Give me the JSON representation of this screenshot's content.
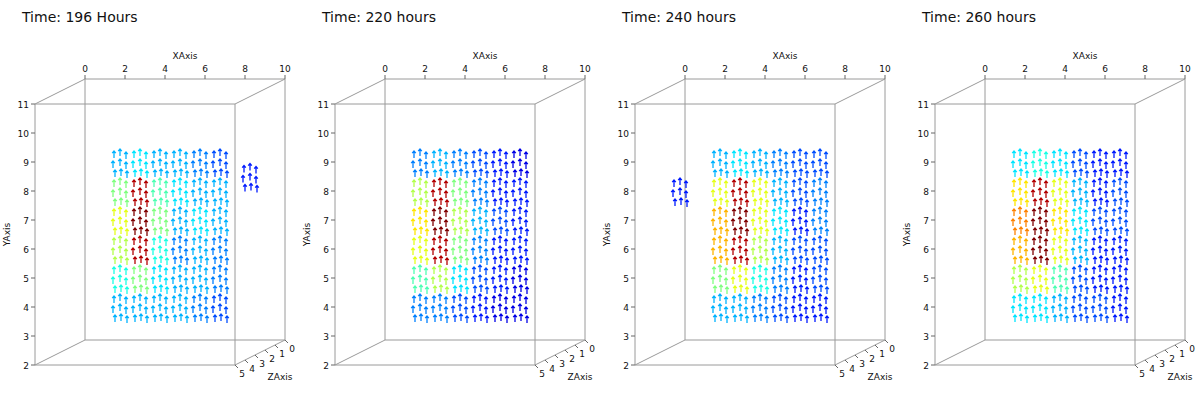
{
  "chart_data": [
    {
      "type": "quiver",
      "title": "Time: 196 Hours",
      "x_label": "XAxis",
      "y_label": "YAxis",
      "z_label": "ZAxis",
      "xlim": [
        0,
        10
      ],
      "ylim": [
        2,
        11
      ],
      "zlim": [
        0,
        5
      ],
      "xticks": [
        0,
        2,
        4,
        6,
        8,
        10
      ],
      "yticks": [
        2,
        3,
        4,
        5,
        6,
        7,
        8,
        9,
        10,
        11
      ],
      "zticks": [
        0,
        1,
        2,
        3,
        4,
        5
      ],
      "x": [
        3,
        4,
        5,
        6,
        7,
        8,
        3,
        4,
        5,
        6,
        7,
        8,
        3,
        4,
        5,
        6,
        7,
        8,
        3,
        4,
        5,
        6,
        7,
        8,
        3,
        4,
        5,
        6,
        7,
        8,
        3,
        4,
        5,
        6,
        7,
        8,
        9.5
      ],
      "y": [
        8.5,
        8.5,
        8.5,
        8.5,
        8.5,
        8.5,
        7.5,
        7.5,
        7.5,
        7.5,
        7.5,
        7.5,
        6.5,
        6.5,
        6.5,
        6.5,
        6.5,
        6.5,
        5.5,
        5.5,
        5.5,
        5.5,
        5.5,
        5.5,
        4.5,
        4.5,
        4.5,
        4.5,
        4.5,
        4.5,
        3.5,
        3.5,
        3.5,
        3.5,
        3.5,
        3.5,
        8
      ],
      "z": [
        2.5,
        2.5,
        2.5,
        2.5,
        2.5,
        2.5,
        2.5,
        2.5,
        2.5,
        2.5,
        2.5,
        2.5,
        2.5,
        2.5,
        2.5,
        2.5,
        2.5,
        2.5,
        2.5,
        2.5,
        2.5,
        2.5,
        2.5,
        2.5,
        2.5,
        2.5,
        2.5,
        2.5,
        2.5,
        2.5,
        2.5,
        2.5,
        2.5,
        2.5,
        2.5,
        2.5,
        2.5
      ],
      "magnitude": [
        0.3,
        0.35,
        0.3,
        0.3,
        0.25,
        0.2,
        0.5,
        0.95,
        0.45,
        0.35,
        0.3,
        0.3,
        0.6,
        1.0,
        0.5,
        0.3,
        0.35,
        0.3,
        0.55,
        0.95,
        0.4,
        0.25,
        0.3,
        0.25,
        0.4,
        0.5,
        0.35,
        0.3,
        0.3,
        0.25,
        0.3,
        0.3,
        0.3,
        0.3,
        0.25,
        0.2,
        0.15
      ]
    },
    {
      "type": "quiver",
      "title": "Time: 220 hours",
      "x_label": "XAxis",
      "y_label": "YAxis",
      "z_label": "ZAxis",
      "xlim": [
        0,
        10
      ],
      "ylim": [
        2,
        11
      ],
      "zlim": [
        0,
        5
      ],
      "xticks": [
        0,
        2,
        4,
        6,
        8,
        10
      ],
      "yticks": [
        2,
        3,
        4,
        5,
        6,
        7,
        8,
        9,
        10,
        11
      ],
      "zticks": [
        0,
        1,
        2,
        3,
        4,
        5
      ],
      "x": [
        3,
        4,
        5,
        6,
        7,
        8,
        3,
        4,
        5,
        6,
        7,
        8,
        3,
        4,
        5,
        6,
        7,
        8,
        3,
        4,
        5,
        6,
        7,
        8,
        3,
        4,
        5,
        6,
        7,
        8,
        3,
        4,
        5,
        6,
        7,
        8
      ],
      "y": [
        8.5,
        8.5,
        8.5,
        8.5,
        8.5,
        8.5,
        7.5,
        7.5,
        7.5,
        7.5,
        7.5,
        7.5,
        6.5,
        6.5,
        6.5,
        6.5,
        6.5,
        6.5,
        5.5,
        5.5,
        5.5,
        5.5,
        5.5,
        5.5,
        4.5,
        4.5,
        4.5,
        4.5,
        4.5,
        4.5,
        3.5,
        3.5,
        3.5,
        3.5,
        3.5,
        3.5
      ],
      "z": [
        2.5,
        2.5,
        2.5,
        2.5,
        2.5,
        2.5,
        2.5,
        2.5,
        2.5,
        2.5,
        2.5,
        2.5,
        2.5,
        2.5,
        2.5,
        2.5,
        2.5,
        2.5,
        2.5,
        2.5,
        2.5,
        2.5,
        2.5,
        2.5,
        2.5,
        2.5,
        2.5,
        2.5,
        2.5,
        2.5,
        2.5,
        2.5,
        2.5,
        2.5,
        2.5,
        2.5
      ],
      "magnitude": [
        0.25,
        0.3,
        0.25,
        0.2,
        0.15,
        0.1,
        0.55,
        0.95,
        0.5,
        0.25,
        0.15,
        0.15,
        0.65,
        1.0,
        0.55,
        0.3,
        0.2,
        0.15,
        0.6,
        0.95,
        0.5,
        0.25,
        0.15,
        0.15,
        0.45,
        0.55,
        0.35,
        0.2,
        0.15,
        0.1,
        0.25,
        0.25,
        0.2,
        0.15,
        0.1,
        0.1
      ]
    },
    {
      "type": "quiver",
      "title": "Time: 240 hours",
      "x_label": "XAxis",
      "y_label": "YAxis",
      "z_label": "ZAxis",
      "xlim": [
        0,
        10
      ],
      "ylim": [
        2,
        11
      ],
      "zlim": [
        0,
        5
      ],
      "xticks": [
        0,
        2,
        4,
        6,
        8,
        10
      ],
      "yticks": [
        2,
        3,
        4,
        5,
        6,
        7,
        8,
        9,
        10,
        11
      ],
      "zticks": [
        0,
        1,
        2,
        3,
        4,
        5
      ],
      "x": [
        3,
        4,
        5,
        6,
        7,
        8,
        3,
        4,
        5,
        6,
        7,
        8,
        3,
        4,
        5,
        6,
        7,
        8,
        3,
        4,
        5,
        6,
        7,
        8,
        3,
        4,
        5,
        6,
        7,
        8,
        3,
        4,
        5,
        6,
        7,
        8,
        1
      ],
      "y": [
        8.5,
        8.5,
        8.5,
        8.5,
        8.5,
        8.5,
        7.5,
        7.5,
        7.5,
        7.5,
        7.5,
        7.5,
        6.5,
        6.5,
        6.5,
        6.5,
        6.5,
        6.5,
        5.5,
        5.5,
        5.5,
        5.5,
        5.5,
        5.5,
        4.5,
        4.5,
        4.5,
        4.5,
        4.5,
        4.5,
        3.5,
        3.5,
        3.5,
        3.5,
        3.5,
        3.5,
        7.5
      ],
      "z": [
        2.5,
        2.5,
        2.5,
        2.5,
        2.5,
        2.5,
        2.5,
        2.5,
        2.5,
        2.5,
        2.5,
        2.5,
        2.5,
        2.5,
        2.5,
        2.5,
        2.5,
        2.5,
        2.5,
        2.5,
        2.5,
        2.5,
        2.5,
        2.5,
        2.5,
        2.5,
        2.5,
        2.5,
        2.5,
        2.5,
        2.5,
        2.5,
        2.5,
        2.5,
        2.5,
        2.5,
        2.5
      ],
      "magnitude": [
        0.3,
        0.35,
        0.3,
        0.25,
        0.2,
        0.2,
        0.6,
        0.95,
        0.6,
        0.3,
        0.2,
        0.25,
        0.7,
        1.0,
        0.6,
        0.35,
        0.15,
        0.25,
        0.7,
        0.95,
        0.55,
        0.3,
        0.2,
        0.2,
        0.5,
        0.6,
        0.4,
        0.25,
        0.15,
        0.2,
        0.3,
        0.3,
        0.25,
        0.2,
        0.15,
        0.15,
        0.15
      ]
    },
    {
      "type": "quiver",
      "title": "Time: 260 hours",
      "x_label": "XAxis",
      "y_label": "YAxis",
      "z_label": "ZAxis",
      "xlim": [
        0,
        10
      ],
      "ylim": [
        2,
        11
      ],
      "zlim": [
        0,
        5
      ],
      "xticks": [
        0,
        2,
        4,
        6,
        8,
        10
      ],
      "yticks": [
        2,
        3,
        4,
        5,
        6,
        7,
        8,
        9,
        10,
        11
      ],
      "zticks": [
        0,
        1,
        2,
        3,
        4,
        5
      ],
      "x": [
        3,
        4,
        5,
        6,
        7,
        8,
        3,
        4,
        5,
        6,
        7,
        8,
        3,
        4,
        5,
        6,
        7,
        8,
        3,
        4,
        5,
        6,
        7,
        8,
        3,
        4,
        5,
        6,
        7,
        8,
        3,
        4,
        5,
        6,
        7,
        8
      ],
      "y": [
        8.5,
        8.5,
        8.5,
        8.5,
        8.5,
        8.5,
        7.5,
        7.5,
        7.5,
        7.5,
        7.5,
        7.5,
        6.5,
        6.5,
        6.5,
        6.5,
        6.5,
        6.5,
        5.5,
        5.5,
        5.5,
        5.5,
        5.5,
        5.5,
        4.5,
        4.5,
        4.5,
        4.5,
        4.5,
        4.5,
        3.5,
        3.5,
        3.5,
        3.5,
        3.5,
        3.5
      ],
      "z": [
        2.5,
        2.5,
        2.5,
        2.5,
        2.5,
        2.5,
        2.5,
        2.5,
        2.5,
        2.5,
        2.5,
        2.5,
        2.5,
        2.5,
        2.5,
        2.5,
        2.5,
        2.5,
        2.5,
        2.5,
        2.5,
        2.5,
        2.5,
        2.5,
        2.5,
        2.5,
        2.5,
        2.5,
        2.5,
        2.5,
        2.5,
        2.5,
        2.5,
        2.5,
        2.5,
        2.5
      ],
      "magnitude": [
        0.35,
        0.4,
        0.35,
        0.2,
        0.15,
        0.15,
        0.65,
        0.95,
        0.6,
        0.3,
        0.15,
        0.2,
        0.75,
        1.0,
        0.65,
        0.35,
        0.2,
        0.2,
        0.7,
        1.0,
        0.6,
        0.3,
        0.15,
        0.15,
        0.55,
        0.6,
        0.45,
        0.2,
        0.15,
        0.15,
        0.35,
        0.35,
        0.3,
        0.2,
        0.2,
        0.15
      ]
    }
  ]
}
